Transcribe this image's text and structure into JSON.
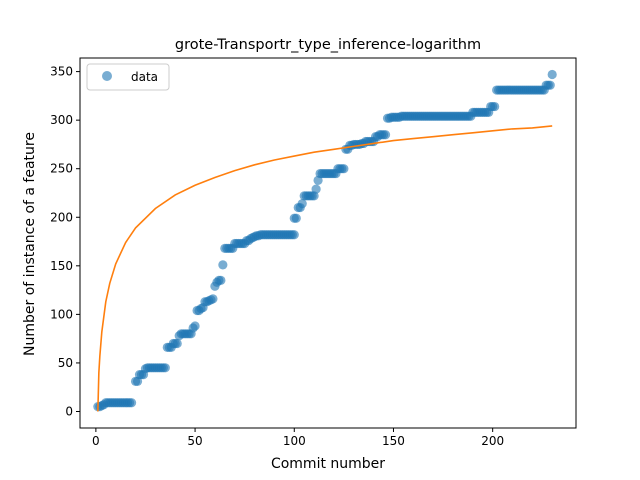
{
  "chart_data": {
    "type": "scatter",
    "title": "grote-Transportr_type_inference-logarithm",
    "xlabel": "Commit number",
    "ylabel": "Number of instance of a feature",
    "xlim": [
      -8,
      242
    ],
    "ylim": [
      -17,
      364
    ],
    "xticks": [
      0,
      50,
      100,
      150,
      200
    ],
    "yticks": [
      0,
      50,
      100,
      150,
      200,
      250,
      300,
      350
    ],
    "grid": false,
    "legend": {
      "placement": "top-left",
      "entries": [
        "data"
      ]
    },
    "colors": {
      "data": "#1f77b4",
      "fit": "#ff7f0e"
    },
    "series": [
      {
        "name": "data",
        "kind": "scatter",
        "points": [
          [
            1,
            5
          ],
          [
            2,
            5
          ],
          [
            3,
            6
          ],
          [
            4,
            7
          ],
          [
            5,
            9
          ],
          [
            6,
            9
          ],
          [
            7,
            9
          ],
          [
            8,
            9
          ],
          [
            9,
            9
          ],
          [
            10,
            9
          ],
          [
            11,
            9
          ],
          [
            12,
            9
          ],
          [
            13,
            9
          ],
          [
            14,
            9
          ],
          [
            15,
            9
          ],
          [
            16,
            9
          ],
          [
            17,
            9
          ],
          [
            18,
            9
          ],
          [
            20,
            31
          ],
          [
            21,
            31
          ],
          [
            22,
            38
          ],
          [
            23,
            38
          ],
          [
            24,
            38
          ],
          [
            25,
            44
          ],
          [
            26,
            45
          ],
          [
            27,
            45
          ],
          [
            28,
            45
          ],
          [
            29,
            45
          ],
          [
            30,
            45
          ],
          [
            31,
            45
          ],
          [
            32,
            45
          ],
          [
            33,
            45
          ],
          [
            34,
            45
          ],
          [
            35,
            45
          ],
          [
            36,
            66
          ],
          [
            37,
            66
          ],
          [
            38,
            66
          ],
          [
            39,
            70
          ],
          [
            40,
            70
          ],
          [
            41,
            70
          ],
          [
            42,
            78
          ],
          [
            43,
            80
          ],
          [
            44,
            80
          ],
          [
            45,
            80
          ],
          [
            46,
            80
          ],
          [
            47,
            80
          ],
          [
            48,
            80
          ],
          [
            49,
            86
          ],
          [
            50,
            88
          ],
          [
            51,
            104
          ],
          [
            52,
            104
          ],
          [
            53,
            106
          ],
          [
            54,
            107
          ],
          [
            55,
            113
          ],
          [
            56,
            113
          ],
          [
            57,
            114
          ],
          [
            58,
            115
          ],
          [
            59,
            116
          ],
          [
            60,
            129
          ],
          [
            61,
            133
          ],
          [
            62,
            135
          ],
          [
            63,
            135
          ],
          [
            64,
            151
          ],
          [
            65,
            168
          ],
          [
            66,
            168
          ],
          [
            67,
            168
          ],
          [
            68,
            168
          ],
          [
            69,
            168
          ],
          [
            70,
            173
          ],
          [
            71,
            173
          ],
          [
            72,
            173
          ],
          [
            73,
            173
          ],
          [
            74,
            173
          ],
          [
            75,
            173
          ],
          [
            76,
            176
          ],
          [
            77,
            176
          ],
          [
            78,
            178
          ],
          [
            79,
            179
          ],
          [
            80,
            180
          ],
          [
            81,
            181
          ],
          [
            82,
            181
          ],
          [
            83,
            182
          ],
          [
            84,
            182
          ],
          [
            85,
            182
          ],
          [
            86,
            182
          ],
          [
            87,
            182
          ],
          [
            88,
            182
          ],
          [
            89,
            182
          ],
          [
            90,
            182
          ],
          [
            91,
            182
          ],
          [
            92,
            182
          ],
          [
            93,
            182
          ],
          [
            94,
            182
          ],
          [
            95,
            182
          ],
          [
            96,
            182
          ],
          [
            97,
            182
          ],
          [
            98,
            182
          ],
          [
            99,
            182
          ],
          [
            100,
            182
          ],
          [
            100,
            199
          ],
          [
            101,
            199
          ],
          [
            102,
            210
          ],
          [
            103,
            210
          ],
          [
            104,
            214
          ],
          [
            105,
            222
          ],
          [
            106,
            222
          ],
          [
            107,
            222
          ],
          [
            108,
            222
          ],
          [
            109,
            222
          ],
          [
            110,
            222
          ],
          [
            111,
            229
          ],
          [
            112,
            238
          ],
          [
            113,
            245
          ],
          [
            114,
            245
          ],
          [
            115,
            245
          ],
          [
            116,
            245
          ],
          [
            117,
            245
          ],
          [
            118,
            245
          ],
          [
            119,
            245
          ],
          [
            120,
            245
          ],
          [
            121,
            245
          ],
          [
            122,
            250
          ],
          [
            123,
            250
          ],
          [
            124,
            250
          ],
          [
            125,
            250
          ],
          [
            126,
            270
          ],
          [
            127,
            270
          ],
          [
            128,
            274
          ],
          [
            129,
            274
          ],
          [
            130,
            275
          ],
          [
            131,
            275
          ],
          [
            132,
            275
          ],
          [
            133,
            275
          ],
          [
            134,
            276
          ],
          [
            135,
            276
          ],
          [
            136,
            278
          ],
          [
            137,
            278
          ],
          [
            138,
            278
          ],
          [
            139,
            278
          ],
          [
            140,
            278
          ],
          [
            141,
            283
          ],
          [
            142,
            283
          ],
          [
            143,
            285
          ],
          [
            144,
            285
          ],
          [
            145,
            285
          ],
          [
            146,
            285
          ],
          [
            147,
            302
          ],
          [
            148,
            302
          ],
          [
            149,
            303
          ],
          [
            150,
            303
          ],
          [
            151,
            303
          ],
          [
            152,
            303
          ],
          [
            153,
            303
          ],
          [
            154,
            304
          ],
          [
            155,
            304
          ],
          [
            156,
            304
          ],
          [
            157,
            304
          ],
          [
            158,
            304
          ],
          [
            159,
            304
          ],
          [
            160,
            304
          ],
          [
            161,
            304
          ],
          [
            162,
            304
          ],
          [
            163,
            304
          ],
          [
            164,
            304
          ],
          [
            165,
            304
          ],
          [
            166,
            304
          ],
          [
            167,
            304
          ],
          [
            168,
            304
          ],
          [
            169,
            304
          ],
          [
            170,
            304
          ],
          [
            171,
            304
          ],
          [
            172,
            304
          ],
          [
            173,
            304
          ],
          [
            174,
            304
          ],
          [
            175,
            304
          ],
          [
            176,
            304
          ],
          [
            177,
            304
          ],
          [
            178,
            304
          ],
          [
            179,
            304
          ],
          [
            180,
            304
          ],
          [
            181,
            304
          ],
          [
            182,
            304
          ],
          [
            183,
            304
          ],
          [
            184,
            304
          ],
          [
            185,
            304
          ],
          [
            186,
            304
          ],
          [
            187,
            304
          ],
          [
            188,
            304
          ],
          [
            189,
            304
          ],
          [
            190,
            308
          ],
          [
            191,
            308
          ],
          [
            192,
            308
          ],
          [
            193,
            308
          ],
          [
            194,
            308
          ],
          [
            195,
            308
          ],
          [
            196,
            308
          ],
          [
            197,
            308
          ],
          [
            198,
            308
          ],
          [
            199,
            314
          ],
          [
            200,
            314
          ],
          [
            201,
            314
          ],
          [
            202,
            331
          ],
          [
            203,
            331
          ],
          [
            204,
            331
          ],
          [
            205,
            331
          ],
          [
            206,
            331
          ],
          [
            207,
            331
          ],
          [
            208,
            331
          ],
          [
            209,
            331
          ],
          [
            210,
            331
          ],
          [
            211,
            331
          ],
          [
            212,
            331
          ],
          [
            213,
            331
          ],
          [
            214,
            331
          ],
          [
            215,
            331
          ],
          [
            216,
            331
          ],
          [
            217,
            331
          ],
          [
            218,
            331
          ],
          [
            219,
            331
          ],
          [
            220,
            331
          ],
          [
            221,
            331
          ],
          [
            222,
            331
          ],
          [
            223,
            331
          ],
          [
            224,
            331
          ],
          [
            225,
            331
          ],
          [
            226,
            331
          ],
          [
            227,
            336
          ],
          [
            228,
            336
          ],
          [
            229,
            336
          ],
          [
            230,
            347
          ]
        ]
      },
      {
        "name": "",
        "kind": "line",
        "points": [
          [
            1,
            0
          ],
          [
            1.5,
            40
          ],
          [
            2,
            57
          ],
          [
            3,
            82
          ],
          [
            5,
            113
          ],
          [
            7,
            132
          ],
          [
            10,
            152
          ],
          [
            15,
            174
          ],
          [
            20,
            189
          ],
          [
            30,
            209
          ],
          [
            40,
            223
          ],
          [
            50,
            233
          ],
          [
            60,
            241
          ],
          [
            70,
            248
          ],
          [
            80,
            254
          ],
          [
            90,
            259
          ],
          [
            100,
            263
          ],
          [
            110,
            267
          ],
          [
            120,
            270
          ],
          [
            130,
            273
          ],
          [
            140,
            276
          ],
          [
            150,
            279
          ],
          [
            160,
            281
          ],
          [
            170,
            283
          ],
          [
            180,
            285
          ],
          [
            190,
            287
          ],
          [
            200,
            289
          ],
          [
            210,
            291
          ],
          [
            220,
            292
          ],
          [
            230,
            294
          ]
        ],
        "note_free": true
      }
    ]
  }
}
